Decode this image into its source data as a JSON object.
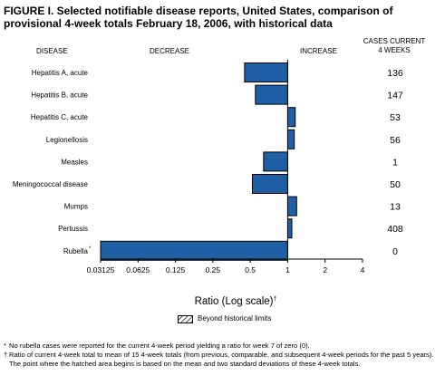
{
  "title": "FIGURE I. Selected notifiable disease reports, United States, comparison of provisional 4-week totals February 18, 2006, with historical data",
  "headers": {
    "disease": "DISEASE",
    "decrease": "DECREASE",
    "increase": "INCREASE",
    "cases_line1": "CASES CURRENT",
    "cases_line2": "4 WEEKS"
  },
  "legend": {
    "label": "Beyond historical limits"
  },
  "footnotes": [
    {
      "mark": "*",
      "text": "No rubella cases were reported for the current 4-week period yielding a ratio for week 7 of zero (0)."
    },
    {
      "mark": "†",
      "text": "Ratio of current 4-week total to mean of 15 4-week totals (from previous, comparable, and subsequent 4-week periods for the past 5 years). The point where the hatched area begins is based on the mean and two standard deviations of these 4-week totals."
    }
  ],
  "chart_data": {
    "type": "bar",
    "orientation": "horizontal",
    "xlabel": "Ratio (Log scale)",
    "xlabel_mark": "†",
    "x_scale": "log2",
    "xlim": [
      0.03125,
      4
    ],
    "baseline": 1,
    "x_ticks": [
      "0.03125",
      "0.0625",
      "0.125",
      "0.25",
      "0.5",
      "1",
      "2",
      "4"
    ],
    "x_tick_values": [
      0.03125,
      0.0625,
      0.125,
      0.25,
      0.5,
      1,
      2,
      4
    ],
    "bar_color": "#1f5fa6",
    "categories": [
      "Hepatitis A, acute",
      "Hepatitis B, acute",
      "Hepatitis C, acute",
      "Legionellosis",
      "Measles",
      "Meningococcal disease",
      "Mumps",
      "Pertussis",
      "Rubella"
    ],
    "category_marks": [
      "",
      "",
      "",
      "",
      "",
      "",
      "",
      "",
      "*"
    ],
    "values": [
      0.45,
      0.55,
      1.15,
      1.13,
      0.64,
      0.52,
      1.18,
      1.08,
      0.03125
    ],
    "cases_current_4_weeks": [
      "136",
      "147",
      "53",
      "56",
      "1",
      "50",
      "13",
      "408",
      "0"
    ]
  }
}
